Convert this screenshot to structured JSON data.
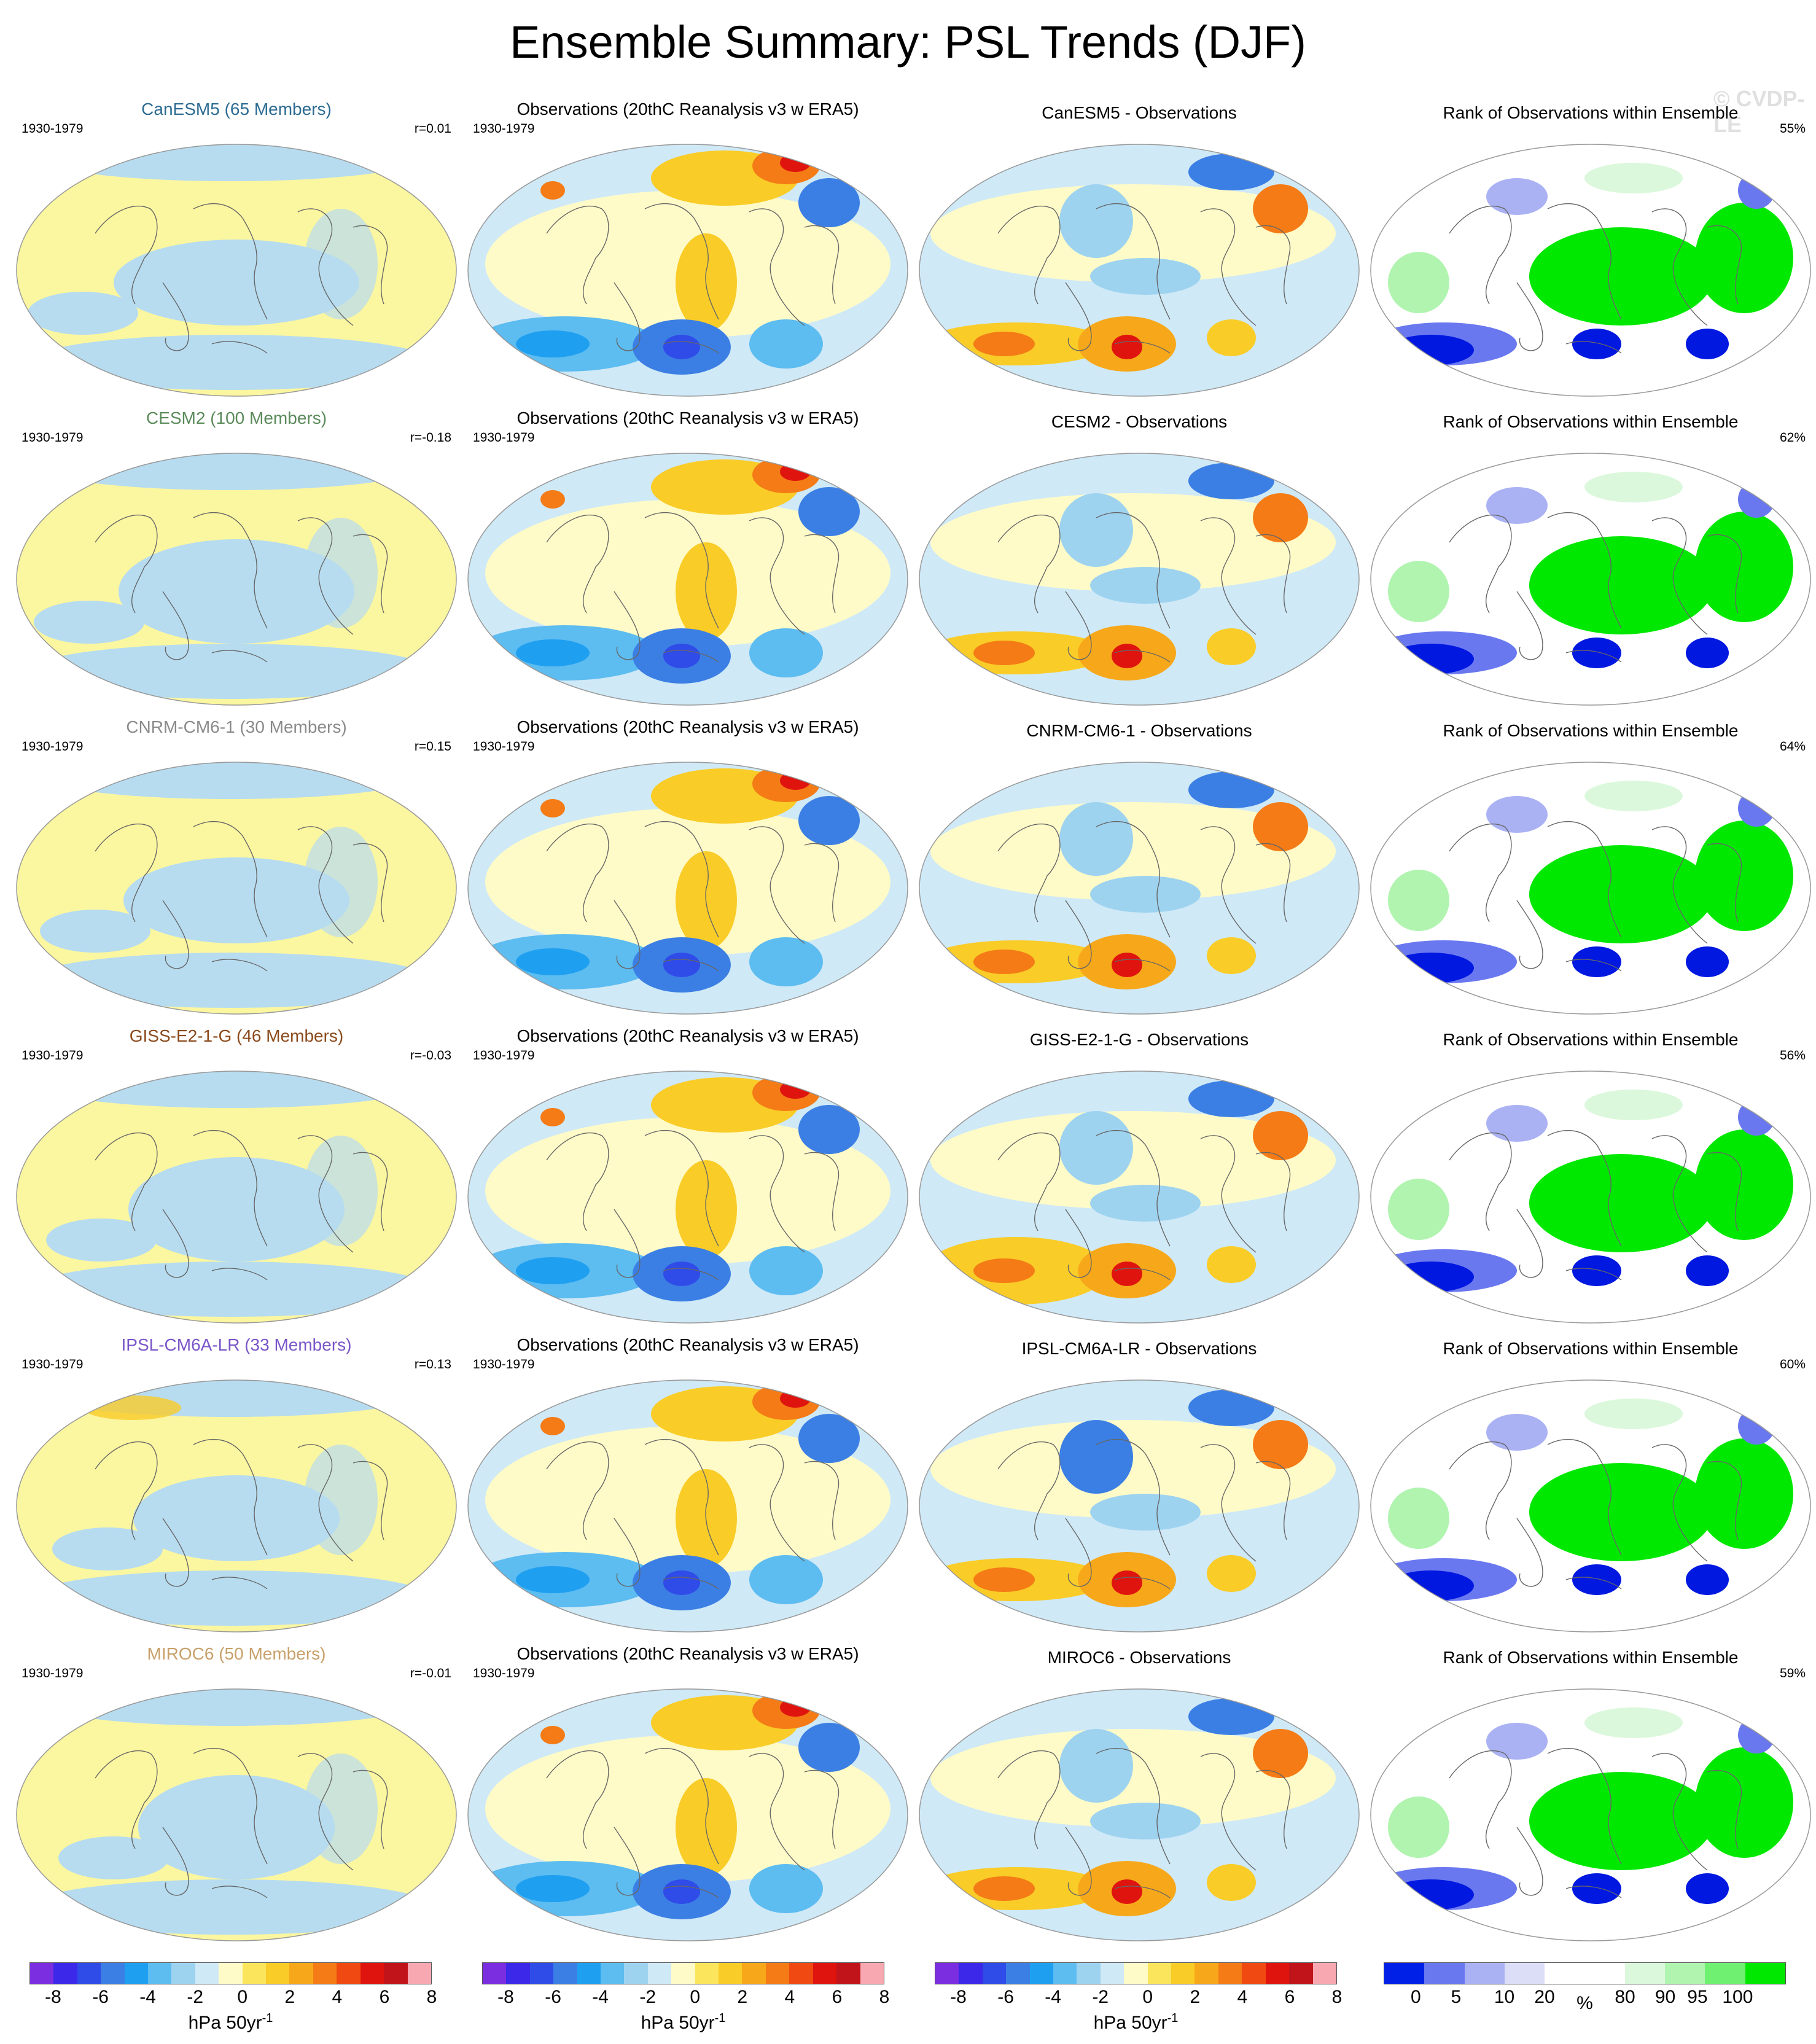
{
  "title": "Ensemble Summary: PSL Trends (DJF)",
  "watermark": "© CVDP-LE",
  "colors": {
    "model_title": [
      "#2c6b92",
      "#5a8a5a",
      "#8a8a8a",
      "#8b4a1c",
      "#7a55c8",
      "#c8a06a"
    ],
    "ocean_dim": "#b7dcf0",
    "land_pale": "#fbf6a0",
    "rank_hi": "#00e800",
    "rank_lo": "#0018e0"
  },
  "rows": [
    {
      "model_title": "CanESM5 (65 Members)",
      "period": "1930-1979",
      "r": "r=0.01",
      "obs_title": "Observations (20thC Reanalysis v3 w ERA5)",
      "obs_period": "1930-1979",
      "diff_title": "CanESM5 - Observations",
      "rank_title": "Rank of Observations within Ensemble",
      "rank_pct": "55%"
    },
    {
      "model_title": "CESM2 (100 Members)",
      "period": "1930-1979",
      "r": "r=-0.18",
      "obs_title": "Observations (20thC Reanalysis v3 w ERA5)",
      "obs_period": "1930-1979",
      "diff_title": "CESM2 - Observations",
      "rank_title": "Rank of Observations within Ensemble",
      "rank_pct": "62%"
    },
    {
      "model_title": "CNRM-CM6-1 (30 Members)",
      "period": "1930-1979",
      "r": "r=0.15",
      "obs_title": "Observations (20thC Reanalysis v3 w ERA5)",
      "obs_period": "1930-1979",
      "diff_title": "CNRM-CM6-1 - Observations",
      "rank_title": "Rank of Observations within Ensemble",
      "rank_pct": "64%"
    },
    {
      "model_title": "GISS-E2-1-G (46 Members)",
      "period": "1930-1979",
      "r": "r=-0.03",
      "obs_title": "Observations (20thC Reanalysis v3 w ERA5)",
      "obs_period": "1930-1979",
      "diff_title": "GISS-E2-1-G - Observations",
      "rank_title": "Rank of Observations within Ensemble",
      "rank_pct": "56%"
    },
    {
      "model_title": "IPSL-CM6A-LR (33 Members)",
      "period": "1930-1979",
      "r": "r=0.13",
      "obs_title": "Observations (20thC Reanalysis v3 w ERA5)",
      "obs_period": "1930-1979",
      "diff_title": "IPSL-CM6A-LR - Observations",
      "rank_title": "Rank of Observations within Ensemble",
      "rank_pct": "60%"
    },
    {
      "model_title": "MIROC6 (50 Members)",
      "period": "1930-1979",
      "r": "r=-0.01",
      "obs_title": "Observations (20thC Reanalysis v3 w ERA5)",
      "obs_period": "1930-1979",
      "diff_title": "MIROC6 - Observations",
      "rank_title": "Rank of Observations within Ensemble",
      "rank_pct": "59%"
    }
  ],
  "colorbars": {
    "trend": {
      "colors": [
        "#7b2de0",
        "#3b28e8",
        "#2f4be8",
        "#3c7fe4",
        "#1f9ff0",
        "#5dbcf0",
        "#9ed3f0",
        "#cfe9f7",
        "#fffbc8",
        "#fbe55c",
        "#f9cc28",
        "#f7a81a",
        "#f47b16",
        "#f04a12",
        "#e0140e",
        "#c0141a",
        "#f7a8b0"
      ],
      "ticks": [
        "-8",
        "-6",
        "-4",
        "-2",
        "0",
        "2",
        "4",
        "6",
        "8"
      ],
      "unit": "hPa 50yr",
      "unit_sup": "-1"
    },
    "rank": {
      "colors": [
        "#0020e8",
        "#6a78f0",
        "#aab2f4",
        "#dcdef8",
        "#ffffff",
        "#ffffff",
        "#dcf8dc",
        "#b0f4b0",
        "#70f070",
        "#00e800"
      ],
      "ticks": [
        "0",
        "5",
        "10",
        "20",
        "%",
        "80",
        "90",
        "95",
        "100"
      ],
      "unit": ""
    }
  }
}
